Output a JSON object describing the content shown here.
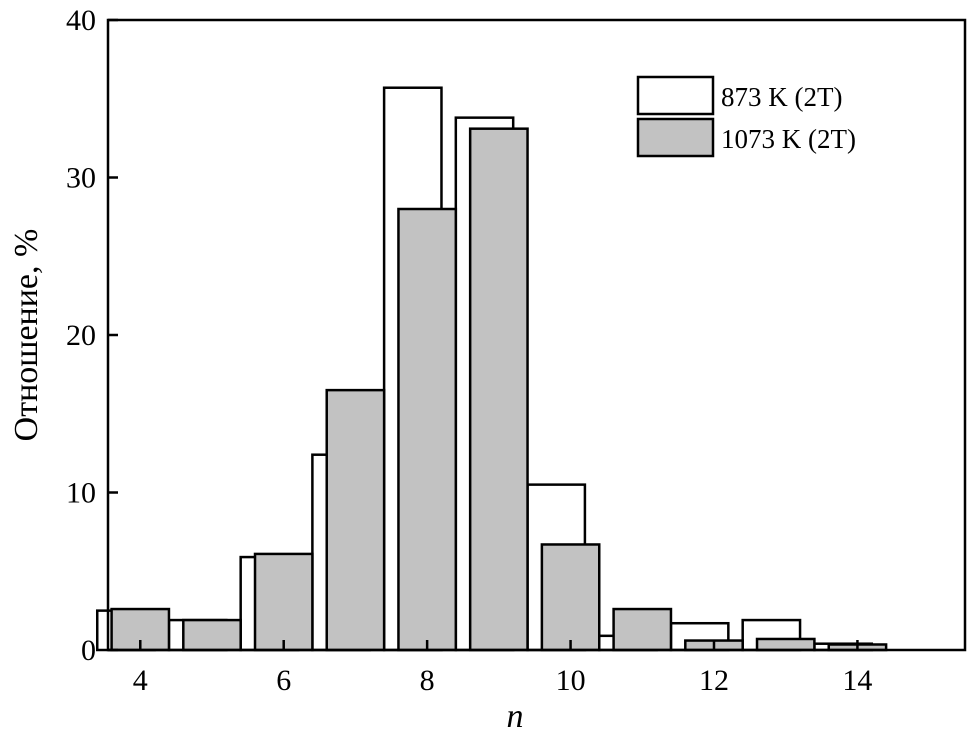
{
  "chart_data": {
    "type": "bar",
    "xlabel": "n",
    "ylabel": "Отношение, %",
    "xlim": [
      3.55,
      15.5
    ],
    "ylim": [
      0,
      40
    ],
    "x_ticks": [
      4,
      6,
      8,
      10,
      12,
      14
    ],
    "y_ticks": [
      0,
      10,
      20,
      30,
      40
    ],
    "legend_position": "top-right",
    "series": [
      {
        "name": "873 K (2T)",
        "color": "#ffffff",
        "offset": -0.2,
        "x": [
          4,
          5,
          6,
          7,
          8,
          9,
          10,
          11,
          12,
          13,
          14
        ],
        "values": [
          2.5,
          1.9,
          5.9,
          12.4,
          35.7,
          33.8,
          10.5,
          0.9,
          1.7,
          1.9,
          0.4
        ]
      },
      {
        "name": "1073 K (2T)",
        "color": "#c2c2c2",
        "offset": 0,
        "x": [
          4,
          5,
          6,
          7,
          8,
          9,
          10,
          11,
          12,
          13,
          14
        ],
        "values": [
          2.6,
          1.9,
          6.1,
          16.5,
          28.0,
          33.1,
          6.7,
          2.6,
          0.6,
          0.7,
          0.35
        ]
      }
    ]
  }
}
